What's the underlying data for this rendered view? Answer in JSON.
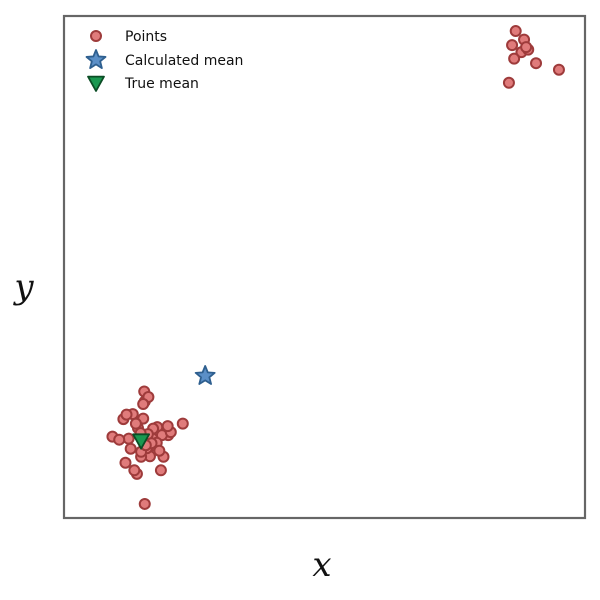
{
  "chart_data": {
    "type": "scatter",
    "title": "",
    "xlabel": "x",
    "ylabel": "y",
    "xlim": [
      0,
      10
    ],
    "ylim": [
      0,
      10
    ],
    "ticks": "none",
    "grid": false,
    "legend": {
      "placement": "top-left",
      "entries": [
        "Points",
        "Calculated mean",
        "True mean"
      ]
    },
    "colors": {
      "points_fill": "#e07b7b",
      "points_edge": "#9e3b3b",
      "calculated_mean_fill": "#5b8fc7",
      "calculated_mean_edge": "#2e5f8f",
      "true_mean_fill": "#1a9850",
      "true_mean_edge": "#0b4d25",
      "frame": "#666666"
    },
    "series": [
      {
        "name": "Points",
        "marker": "circle",
        "x": [
          1.54,
          1.55,
          1.32,
          1.71,
          1.55,
          1.92,
          0.93,
          1.4,
          1.28,
          1.65,
          1.18,
          1.91,
          2.0,
          1.48,
          1.79,
          1.14,
          1.42,
          1.24,
          1.59,
          1.88,
          2.05,
          1.7,
          1.35,
          1.78,
          1.62,
          1.06,
          1.48,
          1.99,
          1.52,
          1.86,
          1.71,
          2.28,
          1.52,
          1.61,
          1.68,
          1.83,
          1.47,
          1.2,
          1.38,
          1.57,
          8.67,
          8.83,
          8.6,
          8.78,
          8.91,
          8.64,
          9.06,
          9.5,
          8.54,
          8.87
        ],
        "y": [
          2.52,
          2.32,
          2.07,
          1.45,
          0.28,
          1.75,
          1.62,
          0.88,
          1.38,
          1.23,
          1.1,
          1.22,
          1.65,
          1.22,
          1.81,
          1.97,
          1.79,
          1.58,
          1.39,
          1.65,
          1.71,
          1.58,
          0.95,
          1.5,
          2.41,
          1.56,
          1.32,
          1.83,
          2.27,
          0.95,
          1.78,
          1.88,
          1.98,
          1.67,
          1.49,
          1.34,
          1.69,
          2.06,
          1.88,
          1.45,
          9.7,
          9.53,
          9.42,
          9.28,
          9.33,
          9.15,
          9.06,
          8.93,
          8.67,
          9.38
        ]
      },
      {
        "name": "Calculated mean",
        "marker": "star",
        "x": [
          2.71
        ],
        "y": [
          2.83
        ]
      },
      {
        "name": "True mean",
        "marker": "triangle-down",
        "x": [
          1.48
        ],
        "y": [
          1.54
        ]
      }
    ]
  }
}
